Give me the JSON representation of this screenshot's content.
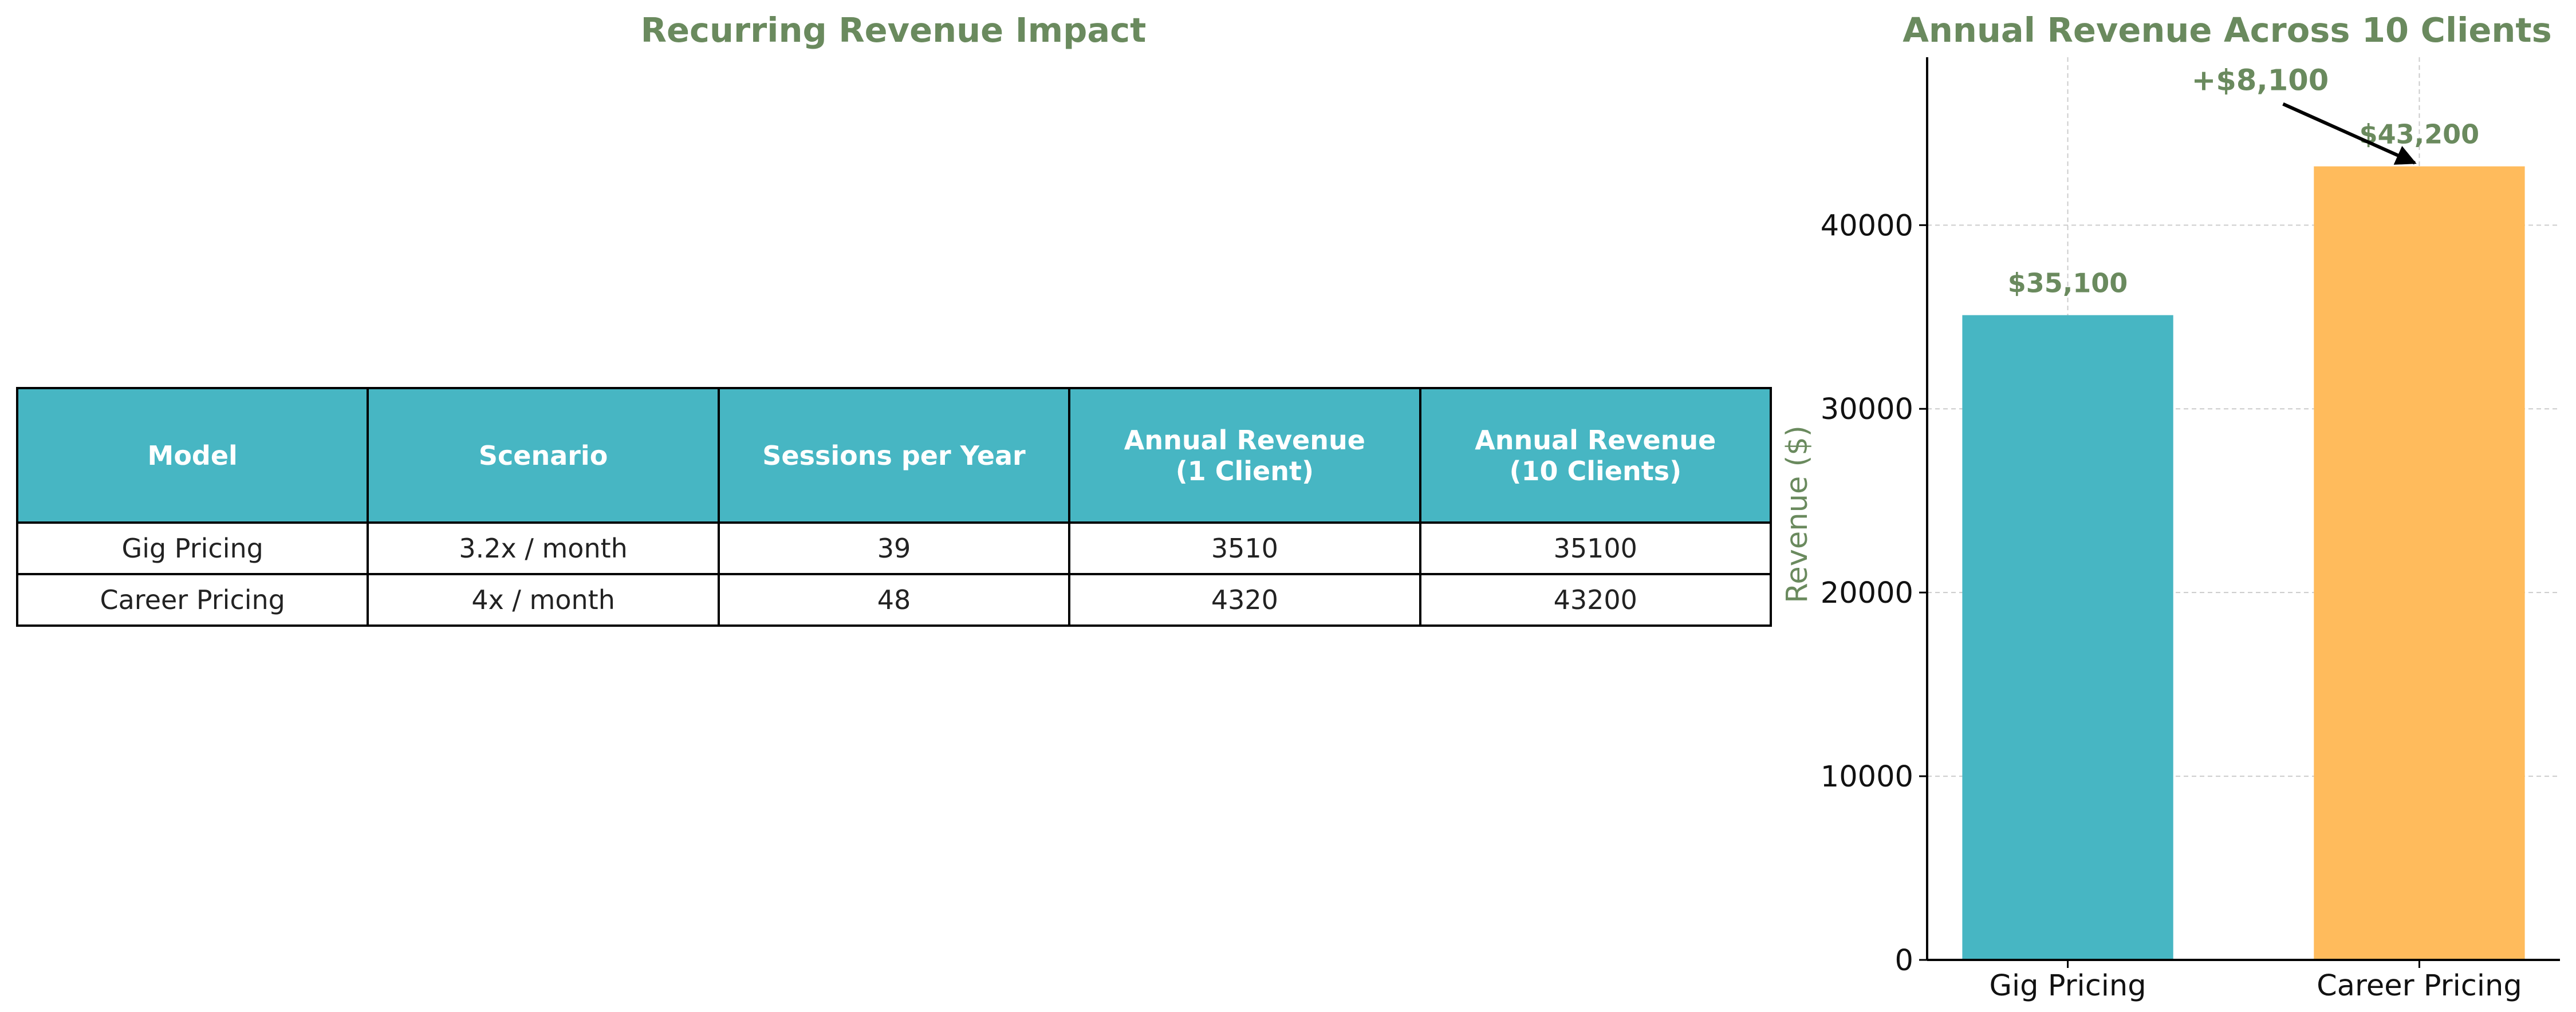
{
  "table_panel": {
    "title": "Recurring Revenue Impact",
    "headers": [
      "Model",
      "Scenario",
      "Sessions per Year",
      "Annual Revenue\n(1 Client)",
      "Annual Revenue\n(10 Clients)"
    ],
    "rows": [
      [
        "Gig Pricing",
        "3.2x / month",
        "39",
        "3510",
        "35100"
      ],
      [
        "Career Pricing",
        "4x / month",
        "48",
        "4320",
        "43200"
      ]
    ],
    "header_color": "#47b6c3"
  },
  "chart_data": {
    "type": "bar",
    "title": "Annual Revenue Across 10 Clients",
    "categories": [
      "Gig Pricing",
      "Career Pricing"
    ],
    "values": [
      35100,
      43200
    ],
    "value_labels": [
      "$35,100",
      "$43,200"
    ],
    "colors": [
      "#47b6c3",
      "#ffbb5c"
    ],
    "xlabel": "",
    "ylabel": "Revenue ($)",
    "yticks": [
      0,
      10000,
      20000,
      30000,
      40000
    ],
    "ylim": [
      0,
      49140
    ],
    "grid": true,
    "annotation": {
      "text": "+$8,100",
      "points_to": "Career Pricing"
    }
  }
}
